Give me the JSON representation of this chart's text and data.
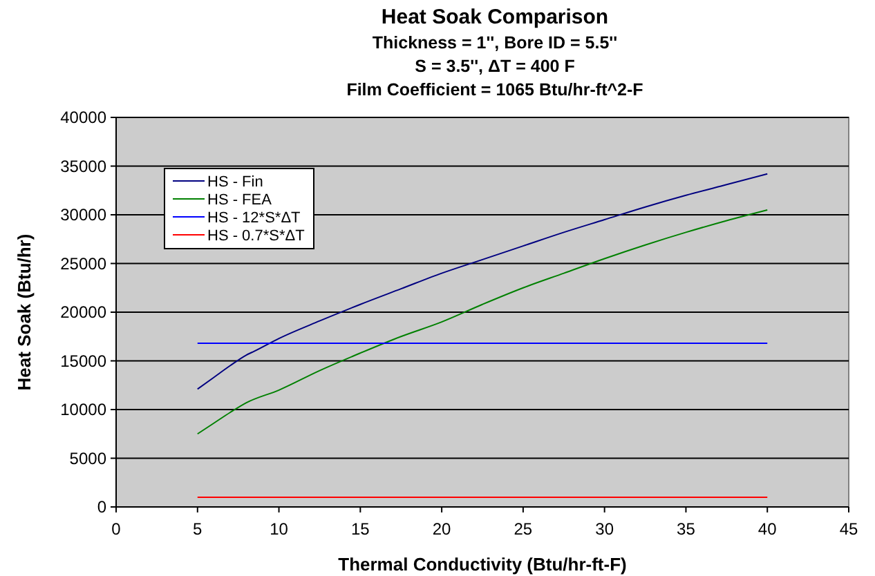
{
  "chart_data": {
    "type": "line",
    "title": "Heat Soak Comparison",
    "subtitle": "Thickness = 1'', Bore ID = 5.5''\nS = 3.5'', ΔT = 400 F\nFilm Coefficient = 1065 Btu/hr-ft^2-F",
    "xlabel": "Thermal Conductivity (Btu/hr-ft-F)",
    "ylabel": "Heat Soak (Btu/hr)",
    "xlim": [
      0,
      45
    ],
    "xticks": [
      0,
      5,
      10,
      15,
      20,
      25,
      30,
      35,
      40,
      45
    ],
    "ylim": [
      0,
      40000
    ],
    "yticks": [
      0,
      5000,
      10000,
      15000,
      20000,
      25000,
      30000,
      35000,
      40000
    ],
    "grid": "y",
    "legend": "top left",
    "series": [
      {
        "name": "HS - Fin",
        "color": "#000080",
        "x": [
          5,
          6,
          7,
          8,
          8.5,
          10,
          12.5,
          15,
          17.5,
          20,
          22.5,
          25,
          27.5,
          30,
          32.5,
          35,
          37.5,
          40
        ],
        "values": [
          12100,
          13300,
          14500,
          15600,
          16000,
          17300,
          19100,
          20800,
          22400,
          24000,
          25400,
          26800,
          28200,
          29500,
          30800,
          32000,
          33100,
          34200
        ]
      },
      {
        "name": "HS - FEA",
        "color": "#008000",
        "x": [
          5,
          6,
          7,
          8,
          10,
          12.5,
          15,
          17.5,
          20,
          22.5,
          25,
          27.5,
          30,
          32.5,
          35,
          37.5,
          40
        ],
        "values": [
          7500,
          8600,
          9700,
          10700,
          12000,
          14000,
          15800,
          17500,
          19000,
          20800,
          22500,
          24000,
          25500,
          26900,
          28200,
          29400,
          30500
        ]
      },
      {
        "name": "HS - 12*S*ΔT",
        "color": "#0000ff",
        "x": [
          5,
          40
        ],
        "values": [
          16800,
          16800
        ]
      },
      {
        "name": "HS - 0.7*S*ΔT",
        "color": "#ff0000",
        "x": [
          5,
          40
        ],
        "values": [
          1000,
          1000
        ]
      }
    ]
  }
}
